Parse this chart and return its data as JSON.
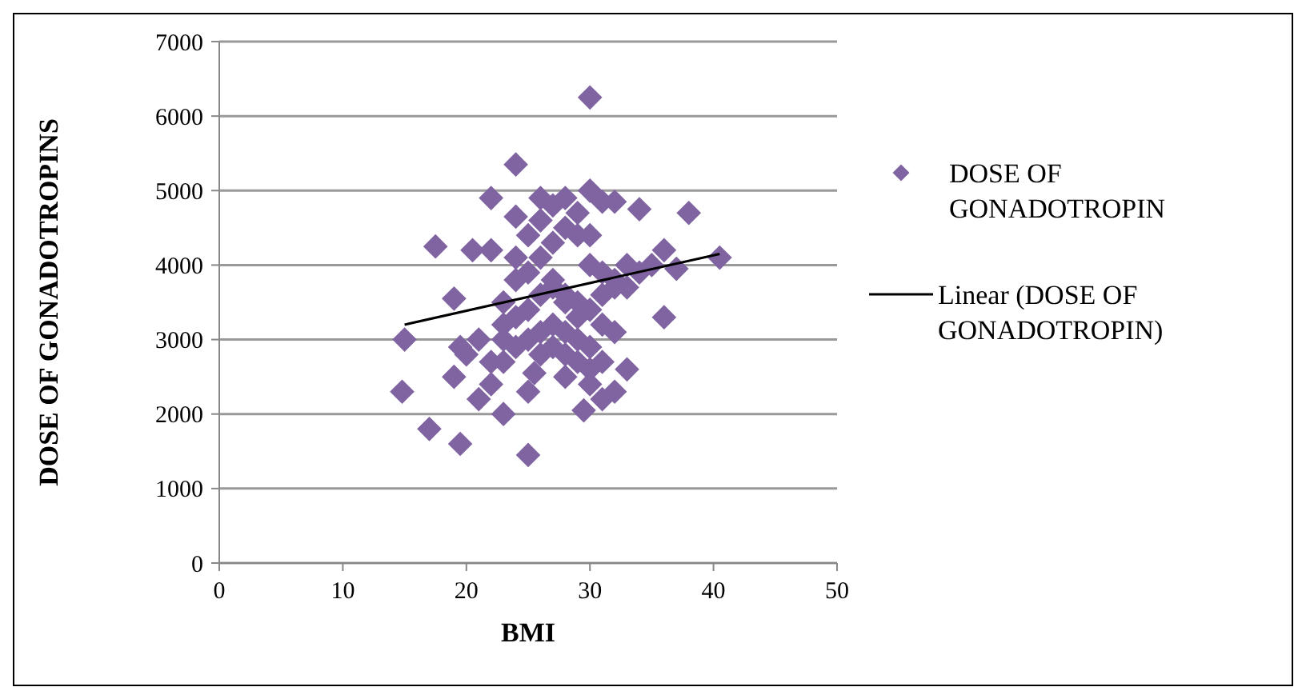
{
  "chart_data": {
    "type": "scatter",
    "xlabel": "BMI",
    "ylabel": "DOSE OF GONADOTROPINS",
    "xlim": [
      0,
      50
    ],
    "xticks": [
      0,
      10,
      20,
      30,
      40,
      50
    ],
    "ylim": [
      0,
      7000
    ],
    "yticks": [
      0,
      1000,
      2000,
      3000,
      4000,
      5000,
      6000,
      7000
    ],
    "grid": "y",
    "legend": "right",
    "marker": "diamond",
    "series": [
      {
        "name": "DOSE OF GONADOTROPIN",
        "color": "#8064a2",
        "x": [
          15,
          14.8,
          17,
          17.5,
          19,
          19.5,
          19,
          19.5,
          21,
          22,
          22,
          23,
          24,
          25,
          25,
          30,
          30,
          31,
          32,
          34,
          38,
          40.5,
          36,
          36,
          33,
          32,
          29.5,
          31,
          30,
          37,
          33,
          20.5,
          24,
          26,
          22,
          21,
          20,
          23,
          24,
          25,
          26,
          27,
          28,
          29,
          30,
          31,
          32,
          23,
          24,
          25,
          26,
          27,
          28,
          29,
          30,
          31,
          24,
          25,
          26,
          27,
          28,
          29,
          30,
          22,
          23,
          26,
          27,
          28,
          29,
          31,
          25,
          26,
          27,
          28,
          29,
          30,
          24,
          27,
          28,
          29,
          32,
          33,
          35,
          34,
          23,
          25.5,
          28,
          30,
          31,
          32
        ],
        "values": [
          3000,
          2300,
          1800,
          4250,
          3550,
          1600,
          2500,
          2900,
          2200,
          2400,
          4900,
          2000,
          5350,
          2300,
          1450,
          6250,
          5000,
          4850,
          4850,
          4750,
          4700,
          4100,
          4200,
          3300,
          2600,
          2300,
          2050,
          2200,
          2600,
          3950,
          3700,
          4200,
          4650,
          4900,
          4200,
          3000,
          2800,
          3500,
          3800,
          3900,
          4100,
          4300,
          4500,
          4400,
          4000,
          3900,
          3700,
          3200,
          3300,
          3400,
          3600,
          3700,
          3500,
          3300,
          3400,
          3600,
          2900,
          3000,
          3100,
          3200,
          3100,
          3000,
          2900,
          2700,
          2700,
          2800,
          2900,
          2800,
          2700,
          3200,
          4400,
          4600,
          4800,
          4900,
          4700,
          4400,
          4100,
          3800,
          3600,
          3500,
          3800,
          4000,
          4000,
          3900,
          3000,
          2550,
          2500,
          2400,
          2700,
          3100
        ]
      },
      {
        "name": "Linear (DOSE OF GONADOTROPIN)",
        "type": "line",
        "marker": "none",
        "color": "#000000",
        "x": [
          15,
          40.5
        ],
        "values": [
          3200,
          4150
        ]
      }
    ]
  }
}
